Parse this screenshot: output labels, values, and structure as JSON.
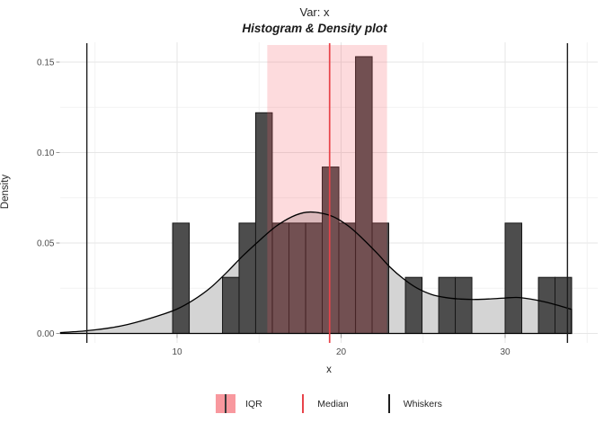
{
  "chart_data": {
    "type": "histogram_density",
    "title": "Var: x",
    "subtitle": "Histogram & Density plot",
    "xlabel": "x",
    "ylabel": "Density",
    "x_ticks": [
      10,
      20,
      30
    ],
    "x_tick_labels": [
      "10",
      "20",
      "30"
    ],
    "x_minor_ticks": [
      5,
      15,
      25,
      35
    ],
    "y_ticks": [
      0,
      0.05,
      0.1,
      0.15
    ],
    "y_tick_labels": [
      "0.00",
      "0.05",
      "0.10",
      "0.15"
    ],
    "xlim": [
      2.9,
      35.6
    ],
    "ylim": [
      0,
      0.161
    ],
    "grid": true,
    "legend_position": "bottom",
    "bars": {
      "binwidth": 1.014,
      "items": [
        {
          "x0": 9.73,
          "density": 0.061
        },
        {
          "x0": 12.77,
          "density": 0.031
        },
        {
          "x0": 13.78,
          "density": 0.061
        },
        {
          "x0": 14.79,
          "density": 0.122
        },
        {
          "x0": 15.81,
          "density": 0.061
        },
        {
          "x0": 16.82,
          "density": 0.061
        },
        {
          "x0": 17.84,
          "density": 0.061
        },
        {
          "x0": 18.85,
          "density": 0.092
        },
        {
          "x0": 19.86,
          "density": 0.061
        },
        {
          "x0": 20.88,
          "density": 0.153
        },
        {
          "x0": 21.89,
          "density": 0.061
        },
        {
          "x0": 23.92,
          "density": 0.031
        },
        {
          "x0": 25.95,
          "density": 0.031
        },
        {
          "x0": 26.96,
          "density": 0.031
        },
        {
          "x0": 30.0,
          "density": 0.061
        },
        {
          "x0": 32.03,
          "density": 0.031
        },
        {
          "x0": 33.04,
          "density": 0.031
        }
      ]
    },
    "density_curve": {
      "points": [
        [
          2.9,
          0.0005
        ],
        [
          4.0,
          0.0011
        ],
        [
          5.0,
          0.002
        ],
        [
          6.0,
          0.0032
        ],
        [
          7.0,
          0.005
        ],
        [
          8.0,
          0.0074
        ],
        [
          9.0,
          0.0102
        ],
        [
          10.0,
          0.0135
        ],
        [
          11.0,
          0.0185
        ],
        [
          12.0,
          0.025
        ],
        [
          13.0,
          0.0335
        ],
        [
          14.0,
          0.0428
        ],
        [
          15.0,
          0.0512
        ],
        [
          16.0,
          0.059
        ],
        [
          17.0,
          0.0645
        ],
        [
          17.9,
          0.067
        ],
        [
          18.8,
          0.0665
        ],
        [
          19.6,
          0.0642
        ],
        [
          20.5,
          0.059
        ],
        [
          21.3,
          0.0525
        ],
        [
          22.2,
          0.0443
        ],
        [
          23.0,
          0.0365
        ],
        [
          23.8,
          0.0302
        ],
        [
          24.6,
          0.0252
        ],
        [
          25.5,
          0.0216
        ],
        [
          26.4,
          0.0198
        ],
        [
          27.3,
          0.019
        ],
        [
          28.2,
          0.0188
        ],
        [
          29.1,
          0.0191
        ],
        [
          30.0,
          0.0196
        ],
        [
          30.7,
          0.0199
        ],
        [
          31.5,
          0.0191
        ],
        [
          32.4,
          0.0175
        ],
        [
          33.2,
          0.0156
        ],
        [
          34.05,
          0.0133
        ]
      ]
    },
    "stats": {
      "median": 19.3,
      "q1": 15.5,
      "q3": 22.8,
      "whisker_low": 4.5,
      "whisker_high": 33.8
    },
    "legend": [
      {
        "key": "rect",
        "label": "IQR"
      },
      {
        "key": "line-red",
        "label": "Median"
      },
      {
        "key": "line-black",
        "label": "Whiskers"
      }
    ],
    "colors": {
      "bar_fill": "#4d4d4d",
      "bar_stroke": "#161616",
      "density_fill": "#d4d4d4",
      "density_stroke": "#000000",
      "iqr_fill": "rgba(244,90,100,0.22)",
      "iqr_legend": "#f8989e",
      "median": "#e8434a",
      "whisker": "#1c1c1c",
      "grid_major": "#e6e6e6",
      "grid_minor": "#f2f2f2",
      "tick": "#9a9a9a",
      "tick_label": "#4d4d4d",
      "text": "#262626"
    }
  }
}
